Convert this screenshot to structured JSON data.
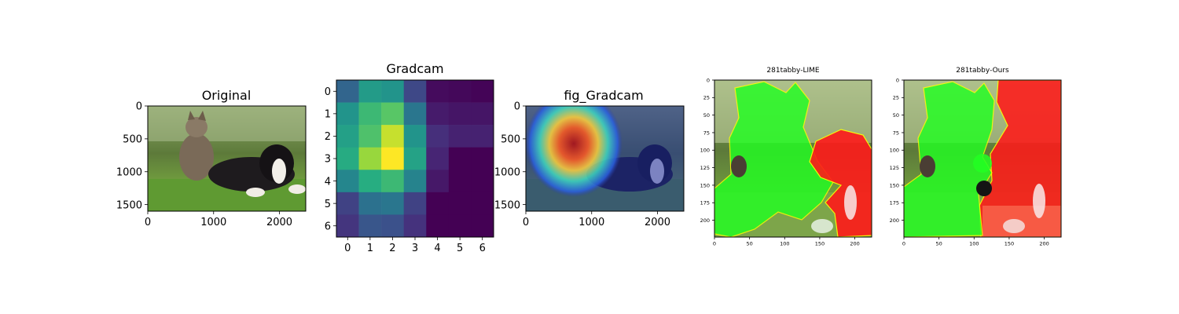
{
  "chart_data": [
    {
      "type": "image",
      "title": "Original",
      "xlim": [
        0,
        2400
      ],
      "ylim": [
        1600,
        0
      ],
      "xticks": [
        0,
        1000,
        2000
      ],
      "yticks": [
        0,
        500,
        1000,
        1500
      ]
    },
    {
      "type": "heatmap",
      "title": "Gradcam",
      "xticks": [
        0,
        1,
        2,
        3,
        4,
        5,
        6
      ],
      "yticks": [
        0,
        1,
        2,
        3,
        4,
        5,
        6
      ],
      "colormap": "viridis",
      "values": [
        [
          0.33,
          0.55,
          0.52,
          0.22,
          0.03,
          0.02,
          0.01
        ],
        [
          0.52,
          0.68,
          0.74,
          0.4,
          0.08,
          0.06,
          0.06
        ],
        [
          0.57,
          0.72,
          0.92,
          0.52,
          0.14,
          0.1,
          0.1
        ],
        [
          0.62,
          0.85,
          1.0,
          0.58,
          0.11,
          0.0,
          0.0
        ],
        [
          0.46,
          0.63,
          0.68,
          0.45,
          0.07,
          0.0,
          0.0
        ],
        [
          0.2,
          0.38,
          0.4,
          0.2,
          0.0,
          0.0,
          0.0
        ],
        [
          0.16,
          0.27,
          0.25,
          0.15,
          0.0,
          0.0,
          0.0
        ]
      ]
    },
    {
      "type": "image",
      "title": "fig_Gradcam",
      "xlim": [
        0,
        2400
      ],
      "ylim": [
        1600,
        0
      ],
      "xticks": [
        0,
        1000,
        2000
      ],
      "yticks": [
        0,
        500,
        1000,
        1500
      ]
    },
    {
      "type": "image",
      "title": "281tabby-LIME",
      "xlim": [
        0,
        224
      ],
      "ylim": [
        224,
        0
      ],
      "xticks": [
        0,
        50,
        100,
        150,
        200
      ],
      "yticks": [
        0,
        25,
        50,
        75,
        100,
        125,
        150,
        175,
        200
      ]
    },
    {
      "type": "image",
      "title": "281tabby-Ours",
      "xlim": [
        0,
        224
      ],
      "ylim": [
        224,
        0
      ],
      "xticks": [
        0,
        50,
        100,
        150,
        200
      ],
      "yticks": [
        0,
        25,
        50,
        75,
        100,
        125,
        150,
        175,
        200
      ]
    }
  ],
  "colors": {
    "positive_region": "#22ff22",
    "negative_region": "#ff1a1a",
    "boundary": "#ffff00"
  }
}
